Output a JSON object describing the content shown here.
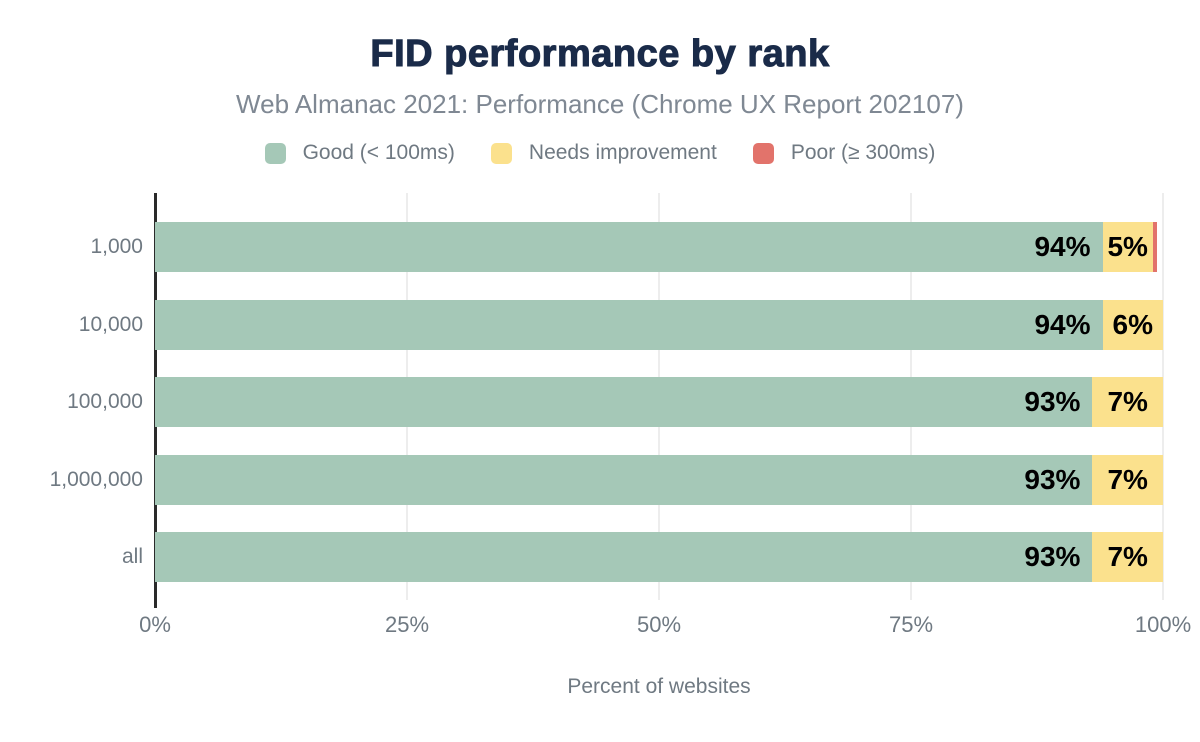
{
  "chart_data": {
    "type": "bar",
    "orientation": "horizontal",
    "stacked": true,
    "title": "FID performance by rank",
    "subtitle": "Web Almanac 2021: Performance (Chrome UX Report 202107)",
    "xlabel": "Percent of websites",
    "ylabel": "",
    "xlim": [
      0,
      100
    ],
    "grid": true,
    "legend_position": "top",
    "x_ticks": [
      {
        "label": "0%",
        "value": 0
      },
      {
        "label": "25%",
        "value": 25
      },
      {
        "label": "50%",
        "value": 50
      },
      {
        "label": "75%",
        "value": 75
      },
      {
        "label": "100%",
        "value": 100
      }
    ],
    "categories": [
      "1,000",
      "10,000",
      "100,000",
      "1,000,000",
      "all"
    ],
    "series": [
      {
        "name": "Good (< 100ms)",
        "key": "good",
        "color": "#a5c8b7",
        "values": [
          94,
          94,
          93,
          93,
          93
        ],
        "labels": [
          "94%",
          "94%",
          "93%",
          "93%",
          "93%"
        ]
      },
      {
        "name": "Needs improvement",
        "key": "needs-improvement",
        "color": "#fbe18d",
        "values": [
          5,
          6,
          7,
          7,
          7
        ],
        "labels": [
          "5%",
          "6%",
          "7%",
          "7%",
          "7%"
        ]
      },
      {
        "name": "Poor (≥ 300ms)",
        "key": "poor",
        "color": "#e2736b",
        "values": [
          0.4,
          0,
          0,
          0,
          0
        ],
        "labels": [
          "",
          "",
          "",
          "",
          ""
        ]
      }
    ]
  },
  "colors": {
    "background": "#ffffff",
    "title_text": "#1a2b49",
    "subtitle_text": "#7f8893",
    "axis_text": "#6f7982",
    "value_label_text": "#000000",
    "gridline": "#ededed",
    "axis_line": "#2a2a2a",
    "good": "#a5c8b7",
    "needs_improvement": "#fbe18d",
    "poor": "#e2736b"
  }
}
